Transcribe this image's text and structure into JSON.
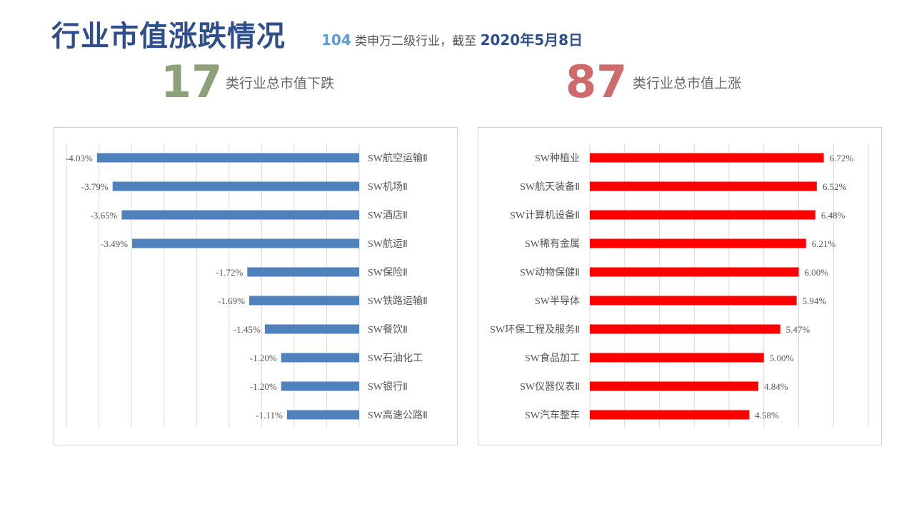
{
  "header": {
    "title": "行业市值涨跌情况",
    "sub_count": "104",
    "sub_text": "类申万二级行业，截至",
    "sub_date": "2020年5月8日"
  },
  "summary": {
    "down_count": "17",
    "down_label": "类行业总市值下跌",
    "up_count": "87",
    "up_label": "类行业总市值上涨"
  },
  "colors": {
    "down_bar": "#4f81bd",
    "up_bar": "#ff0000",
    "down_num": "#8da178",
    "up_num": "#cf6a6a",
    "title": "#2e4e8c"
  },
  "chart_data": [
    {
      "type": "bar",
      "orientation": "horizontal",
      "categories": [
        "SW航空运输Ⅱ",
        "SW机场Ⅱ",
        "SW酒店Ⅱ",
        "SW航运Ⅱ",
        "SW保险Ⅱ",
        "SW铁路运输Ⅱ",
        "SW餐饮Ⅱ",
        "SW石油化工",
        "SW银行Ⅱ",
        "SW高速公路Ⅱ"
      ],
      "values": [
        -4.03,
        -3.79,
        -3.65,
        -3.49,
        -1.72,
        -1.69,
        -1.45,
        -1.2,
        -1.2,
        -1.11
      ],
      "labels": [
        "-4.03%",
        "-3.79%",
        "-3.65%",
        "-3.49%",
        "-1.72%",
        "-1.69%",
        "-1.45%",
        "-1.20%",
        "-1.20%",
        "-1.11%"
      ],
      "xlim": [
        -4.5,
        0
      ],
      "grid": true
    },
    {
      "type": "bar",
      "orientation": "horizontal",
      "categories": [
        "SW种植业",
        "SW航天装备Ⅱ",
        "SW计算机设备Ⅱ",
        "SW稀有金属",
        "SW动物保健Ⅱ",
        "SW半导体",
        "SW环保工程及服务Ⅱ",
        "SW食品加工",
        "SW仪器仪表Ⅱ",
        "SW汽车整车"
      ],
      "values": [
        6.72,
        6.52,
        6.48,
        6.21,
        6.0,
        5.94,
        5.47,
        5.0,
        4.84,
        4.58
      ],
      "labels": [
        "6.72%",
        "6.52%",
        "6.48%",
        "6.21%",
        "6.00%",
        "5.94%",
        "5.47%",
        "5.00%",
        "4.84%",
        "4.58%"
      ],
      "xlim": [
        0,
        8
      ],
      "grid": true
    }
  ]
}
